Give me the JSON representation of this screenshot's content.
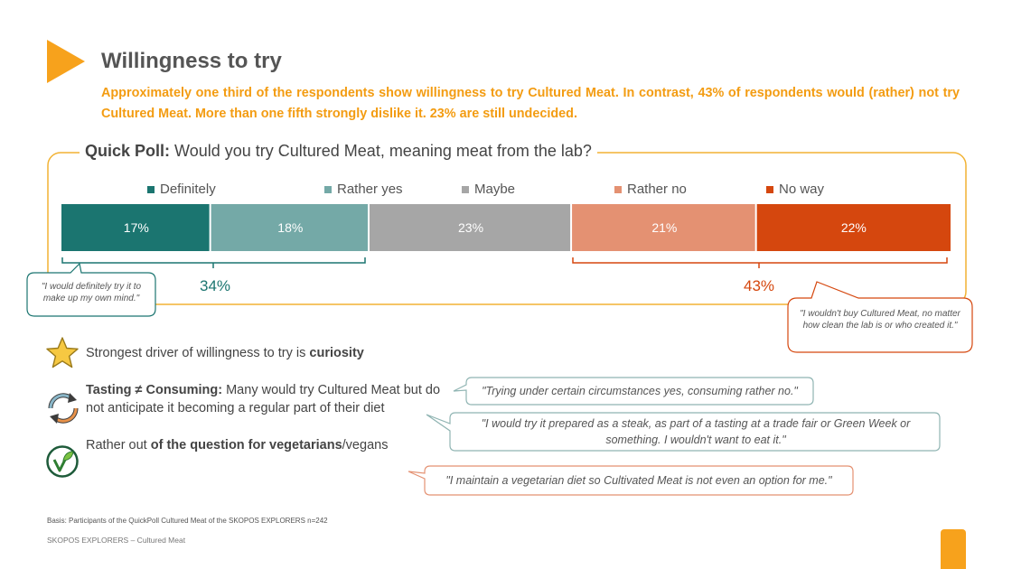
{
  "title": "Willingness to try",
  "subtitle": "Approximately one third of the respondents show willingness to try Cultured Meat. In contrast, 43% of respondents would (rather) not try Cultured Meat. More than one fifth strongly dislike it. 23% are still undecided.",
  "poll": {
    "label": "Quick Poll:",
    "question": "Would you try Cultured Meat, meaning meat from the lab?"
  },
  "chart_data": {
    "type": "bar",
    "orientation": "horizontal-stacked",
    "categories": [
      "Definitely",
      "Rather yes",
      "Maybe",
      "Rather no",
      "No way"
    ],
    "values": [
      17,
      18,
      23,
      21,
      22
    ],
    "value_labels": [
      "17%",
      "18%",
      "23%",
      "21%",
      "22%"
    ],
    "colors": [
      "#1B7570",
      "#74A9A7",
      "#A6A6A6",
      "#E49172",
      "#D5470E"
    ],
    "legend_position": "top",
    "groups": [
      {
        "label": "34%",
        "from": 0,
        "to": 1,
        "color": "#1B7570"
      },
      {
        "label": "43%",
        "from": 3,
        "to": 4,
        "color": "#D5470E"
      }
    ]
  },
  "callouts": {
    "left": "\"I would definitely try it to make up my own mind.\"",
    "right": "\"I wouldn't buy Cultured Meat, no matter how clean the lab is or who created it.\""
  },
  "points": [
    {
      "icon": "star-icon",
      "pre": "Strongest driver of willingness to try is ",
      "bold": "curiosity",
      "post": ""
    },
    {
      "icon": "cycle-arrows-icon",
      "bold_first": "Tasting ≠ Consuming:",
      "text": " Many would try Cultured Meat but do not anticipate it becoming a regular part of their diet"
    },
    {
      "icon": "vegan-leaf-icon",
      "pre": "Rather out ",
      "bold": "of the question for vegetarians",
      "post": "/vegans"
    }
  ],
  "quotes": [
    "\"Trying under certain circumstances yes, consuming rather no.\"",
    "\"I would try it prepared as a steak, as part of a tasting at a trade fair or Green Week or something. I wouldn't want to eat it.\"",
    "\"I maintain a vegetarian diet so Cultivated Meat is not even an option for me.\""
  ],
  "basis": "Basis: Participants of the QuickPoll Cultured Meat of the SKOPOS EXPLORERS n=242",
  "footer": "SKOPOS EXPLORERS – Cultured Meat"
}
